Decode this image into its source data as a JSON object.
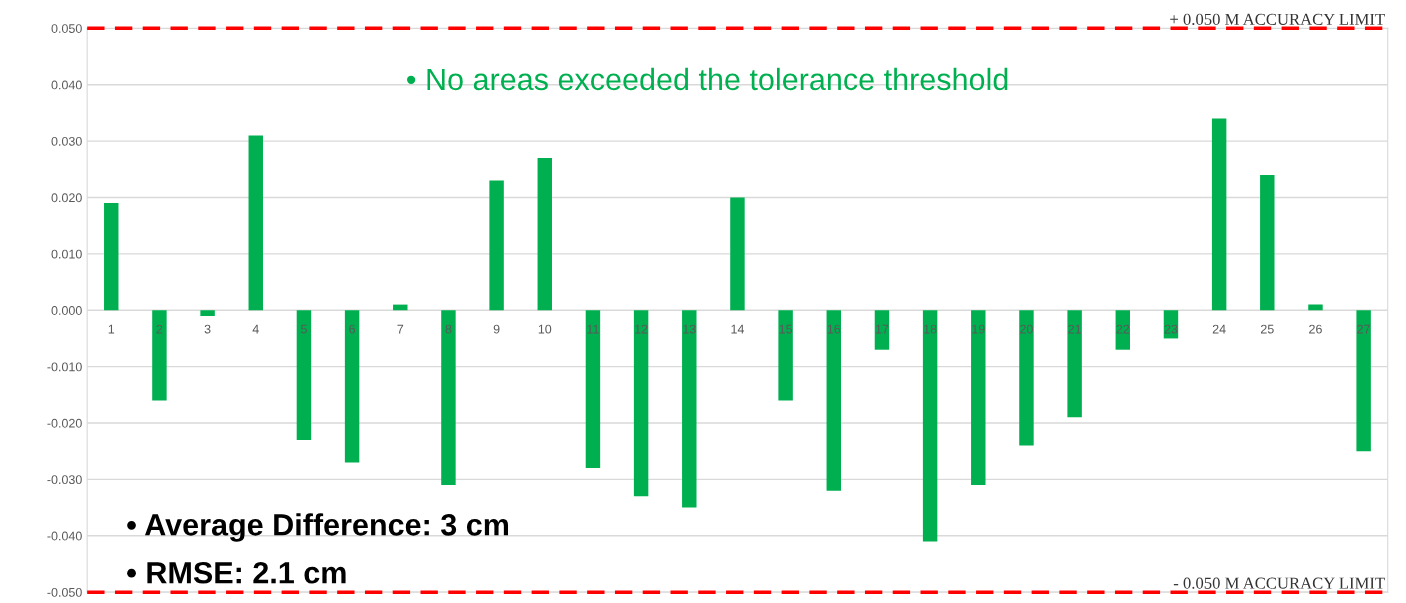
{
  "chart_data": {
    "type": "bar",
    "categories": [
      "1",
      "2",
      "3",
      "4",
      "5",
      "6",
      "7",
      "8",
      "9",
      "10",
      "11",
      "12",
      "13",
      "14",
      "15",
      "16",
      "17",
      "18",
      "19",
      "20",
      "21",
      "22",
      "23",
      "24",
      "25",
      "26",
      "27"
    ],
    "values": [
      0.019,
      -0.016,
      -0.001,
      0.031,
      -0.023,
      -0.027,
      0.001,
      -0.031,
      0.023,
      0.027,
      -0.028,
      -0.033,
      -0.035,
      0.02,
      -0.016,
      -0.032,
      -0.007,
      -0.041,
      -0.031,
      -0.024,
      -0.019,
      -0.007,
      -0.005,
      0.034,
      0.024,
      0.001,
      -0.025
    ],
    "color": "#00b050",
    "ylim": [
      -0.05,
      0.05
    ],
    "yticks": [
      {
        "value": -0.05,
        "label": "-0.050"
      },
      {
        "value": -0.04,
        "label": "-0.040"
      },
      {
        "value": -0.03,
        "label": "-0.030"
      },
      {
        "value": -0.02,
        "label": "-0.020"
      },
      {
        "value": -0.01,
        "label": "-0.010"
      },
      {
        "value": 0,
        "label": "0.000"
      },
      {
        "value": 0.01,
        "label": "0.010"
      },
      {
        "value": 0.02,
        "label": "0.020"
      },
      {
        "value": 0.03,
        "label": "0.030"
      },
      {
        "value": 0.04,
        "label": "0.040"
      },
      {
        "value": 0.05,
        "label": "0.050"
      }
    ],
    "grid": "y",
    "ref_lines": [
      {
        "axis": "y",
        "value": 0.05,
        "label": "+ 0.050 M ACCURACY LIMIT",
        "color": "#ff0000",
        "line_style": "dashed"
      },
      {
        "axis": "y",
        "value": -0.05,
        "label": "- 0.050 M ACCURACY LIMIT",
        "color": "#ff0000",
        "line_style": "dashed"
      }
    ],
    "annotations": [
      "• No areas exceeded the tolerance threshold",
      "• Average Difference: 3 cm",
      "• RMSE: 2.1 cm"
    ]
  }
}
